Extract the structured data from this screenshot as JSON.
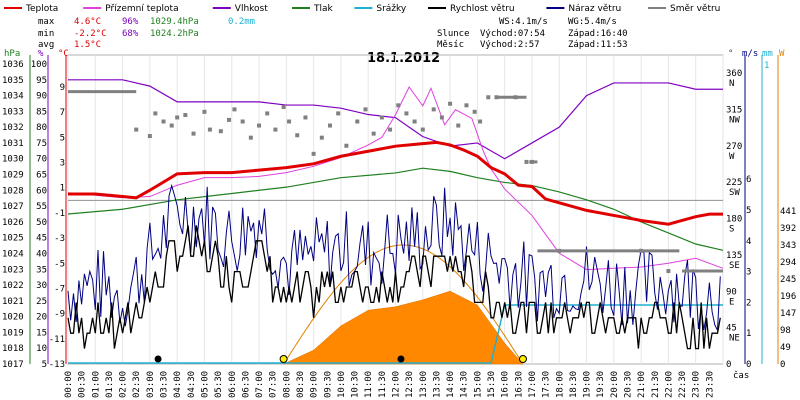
{
  "chart_data": {
    "type": "line",
    "title": "18.1.2012",
    "time_axis_label": "čas",
    "x_tick_labels": [
      "00:00",
      "00:30",
      "01:00",
      "01:30",
      "02:00",
      "02:30",
      "03:00",
      "03:30",
      "04:00",
      "04:30",
      "05:00",
      "05:30",
      "06:00",
      "06:30",
      "07:00",
      "07:30",
      "08:00",
      "08:30",
      "09:00",
      "09:30",
      "10:00",
      "10:30",
      "11:00",
      "11:30",
      "12:00",
      "12:30",
      "13:00",
      "13:30",
      "14:00",
      "14:30",
      "15:00",
      "15:30",
      "16:00",
      "16:30",
      "17:00",
      "17:30",
      "18:00",
      "18:30",
      "19:00",
      "19:30",
      "20:00",
      "20:30",
      "21:00",
      "21:30",
      "22:00",
      "22:30",
      "23:00",
      "23:30"
    ],
    "legend": [
      {
        "name": "Teplota",
        "color": "#e00000"
      },
      {
        "name": "Přízemní teplota",
        "color": "#e040e0"
      },
      {
        "name": "Vlhkost",
        "color": "#8000c0"
      },
      {
        "name": "Tlak",
        "color": "#208020"
      },
      {
        "name": "Srážky",
        "color": "#20b0d0"
      },
      {
        "name": "Rychlost větru",
        "color": "#000000"
      },
      {
        "name": "Náraz větru",
        "color": "#000080"
      },
      {
        "name": "Směr větru",
        "color": "#808080"
      }
    ],
    "stats": {
      "max": {
        "label": "max",
        "temp": "4.6°C",
        "hum": "96%",
        "press": "1029.4hPa",
        "rain": "0.2mm"
      },
      "min": {
        "label": "min",
        "temp": "-2.2°C",
        "hum": "68%",
        "press": "1024.2hPa"
      },
      "avg": {
        "label": "avg",
        "temp": "1.5°C"
      }
    },
    "wind_info": {
      "ws": "WS:4.1m/s",
      "wg": "WG:5.4m/s"
    },
    "sun": {
      "label": "Slunce",
      "rise": "Východ:07:54",
      "set": "Západ:16:40"
    },
    "moon": {
      "label": "Měsíc",
      "rise": "Východ:2:57",
      "set": "Západ:11:53"
    },
    "axes": {
      "hpa": {
        "unit": "hPa",
        "ticks": [
          "1036",
          "1035",
          "1034",
          "1033",
          "1032",
          "1031",
          "1030",
          "1029",
          "1028",
          "1027",
          "1026",
          "1025",
          "1024",
          "1023",
          "1022",
          "1021",
          "1020",
          "1019",
          "1018",
          "1017"
        ],
        "color": "#208020"
      },
      "percent": {
        "unit": "%",
        "ticks": [
          "100",
          "95",
          "90",
          "85",
          "80",
          "75",
          "70",
          "65",
          "60",
          "55",
          "50",
          "45",
          "40",
          "35",
          "30",
          "25",
          "20",
          "15",
          "10",
          "5"
        ],
        "color": "#8000c0"
      },
      "celsius": {
        "unit": "°C",
        "ticks": [
          "9",
          "7",
          "5",
          "3",
          "1",
          "-1",
          "-3",
          "-5",
          "-7",
          "-9",
          "-11",
          "-13"
        ],
        "color": "#e00000"
      },
      "degrees": {
        "unit": "°",
        "ticks": [
          {
            "v": "360",
            "d": "N"
          },
          {
            "v": "315",
            "d": "NW"
          },
          {
            "v": "270",
            "d": "W"
          },
          {
            "v": "225",
            "d": "SW"
          },
          {
            "v": "180",
            "d": "S"
          },
          {
            "v": "135",
            "d": "SE"
          },
          {
            "v": "90",
            "d": "E"
          },
          {
            "v": "45",
            "d": "NE"
          },
          {
            "v": "0",
            "d": ""
          }
        ],
        "color": "#404040"
      },
      "ms": {
        "unit": "m/s",
        "ticks": [
          "6",
          "5",
          "4",
          "3",
          "2",
          "1",
          "0"
        ],
        "color": "#000080"
      },
      "mm": {
        "unit": "mm",
        "ticks": [
          "1"
        ],
        "color": "#20b0d0"
      },
      "watt": {
        "unit": "W",
        "ticks": [
          "441",
          "392",
          "343",
          "294",
          "245",
          "196",
          "147",
          "98",
          "49",
          "0"
        ],
        "color": "#e08000"
      }
    },
    "ylim_temp": [
      -13,
      9
    ],
    "ylim_humidity": [
      5,
      100
    ],
    "ylim_pressure": [
      1017,
      1036
    ],
    "ylim_wind": [
      0,
      6
    ],
    "ylim_radiation": [
      0,
      441
    ],
    "series": [
      {
        "name": "Teplota",
        "x_hours": [
          0,
          1,
          2,
          2.5,
          3,
          4,
          5,
          6,
          7,
          8,
          9,
          10,
          11,
          12,
          13,
          13.5,
          14,
          14.5,
          15,
          15.5,
          16,
          16.5,
          17,
          17.5,
          18,
          19,
          20,
          21,
          22,
          22.5,
          23,
          23.5,
          24
        ],
        "values": [
          0.5,
          0.5,
          0.3,
          0.2,
          0.8,
          2.1,
          2.2,
          2.2,
          2.4,
          2.6,
          2.9,
          3.5,
          3.9,
          4.3,
          4.5,
          4.6,
          4.4,
          4.0,
          3.5,
          2.6,
          2.1,
          1.2,
          1.1,
          0.1,
          -0.2,
          -0.8,
          -1.2,
          -1.6,
          -1.9,
          -1.6,
          -1.3,
          -1.1,
          -1.1
        ]
      },
      {
        "name": "Přízemní teplota",
        "x_hours": [
          0,
          1,
          2,
          3,
          4,
          5,
          6,
          7,
          8,
          9,
          10,
          11,
          11.5,
          12,
          12.5,
          13,
          13.3,
          13.8,
          14.2,
          14.8,
          15.2,
          15.5,
          16,
          17,
          18,
          19,
          20,
          21,
          22,
          23,
          24
        ],
        "values": [
          0.6,
          0.4,
          0.2,
          0.3,
          1.2,
          1.8,
          1.8,
          1.9,
          2.2,
          2.7,
          3.4,
          4.4,
          5.0,
          6.8,
          9.0,
          7.5,
          8.9,
          6.0,
          7.2,
          6.5,
          4.0,
          2.5,
          0.9,
          -1.2,
          -4.2,
          -5.5,
          -5.4,
          -5.3,
          -5.0,
          -4.6,
          -5.4
        ]
      },
      {
        "name": "Vlhkost",
        "x_hours": [
          0,
          1,
          2,
          3,
          4,
          5,
          6,
          7,
          8,
          9,
          10,
          11,
          12,
          13,
          14,
          15,
          16,
          17,
          18,
          19,
          20,
          21,
          22,
          23,
          24
        ],
        "values": [
          95,
          95,
          95,
          93,
          88,
          88,
          88,
          88,
          87,
          87,
          86,
          84,
          83,
          77,
          74,
          75,
          70,
          75,
          80,
          90,
          94,
          94,
          94,
          92,
          92
        ]
      },
      {
        "name": "Tlak",
        "x_hours": [
          0,
          2,
          4,
          6,
          8,
          10,
          12,
          13,
          14,
          15,
          16,
          17,
          18,
          19,
          20,
          21,
          22,
          23,
          24
        ],
        "values": [
          1026.5,
          1026.8,
          1027.4,
          1027.8,
          1028.2,
          1028.8,
          1029.1,
          1029.4,
          1029.2,
          1028.8,
          1028.5,
          1028.3,
          1027.9,
          1027.4,
          1026.8,
          1026.0,
          1025.3,
          1024.6,
          1024.2
        ]
      },
      {
        "name": "Srážky",
        "x_hours": [
          0,
          15.5,
          16,
          24
        ],
        "values": [
          0,
          0,
          0.2,
          0.2
        ]
      },
      {
        "name": "Rychlost větru (mean)",
        "x_hours": [
          0,
          1,
          2,
          3,
          4,
          5,
          6,
          7,
          8,
          9,
          10,
          11,
          12,
          13,
          14,
          15,
          16,
          17,
          18,
          19,
          20,
          21,
          22,
          23,
          24
        ],
        "values": [
          1.2,
          1.4,
          1.0,
          2.2,
          3.8,
          3.6,
          2.8,
          3.6,
          2.0,
          2.3,
          2.6,
          2.4,
          2.7,
          3.0,
          3.4,
          2.4,
          2.0,
          1.4,
          1.6,
          1.6,
          1.4,
          1.3,
          1.5,
          1.2,
          1.1
        ]
      },
      {
        "name": "Radiation (orange)",
        "x_hours": [
          7.9,
          9,
          10,
          11,
          12,
          13,
          14,
          15,
          16,
          16.67
        ],
        "values": [
          0,
          40,
          110,
          155,
          165,
          185,
          210,
          170,
          60,
          0
        ]
      }
    ],
    "wind_direction": {
      "x_hours": [
        0.0,
        1.5,
        2.5,
        3.0,
        3.2,
        3.5,
        3.8,
        4.0,
        4.3,
        4.6,
        5.0,
        5.2,
        5.6,
        5.9,
        6.1,
        6.4,
        6.7,
        7.0,
        7.3,
        7.6,
        7.9,
        8.1,
        8.4,
        8.7,
        9.0,
        9.3,
        9.6,
        9.9,
        10.2,
        10.6,
        10.9,
        11.2,
        11.5,
        11.8,
        12.1,
        12.4,
        12.7,
        13.0,
        13.4,
        13.7,
        14.0,
        14.3,
        14.6,
        14.9,
        15.1,
        15.4,
        15.7,
        16.4,
        16.8,
        17.0,
        18.0,
        21.0,
        22.0,
        24.0
      ],
      "degrees": [
        337,
        337,
        290,
        282,
        310,
        300,
        295,
        305,
        308,
        285,
        312,
        290,
        288,
        302,
        315,
        300,
        280,
        295,
        310,
        290,
        318,
        300,
        283,
        305,
        260,
        280,
        295,
        310,
        270,
        300,
        315,
        285,
        305,
        290,
        320,
        310,
        300,
        290,
        315,
        305,
        322,
        295,
        320,
        312,
        300,
        330,
        330,
        330,
        250,
        250,
        140,
        140,
        115,
        115
      ]
    },
    "markers": {
      "black_dots_hours": [
        3.3,
        12.2
      ],
      "yellow_dots_hours": [
        7.9,
        16.67
      ]
    }
  }
}
